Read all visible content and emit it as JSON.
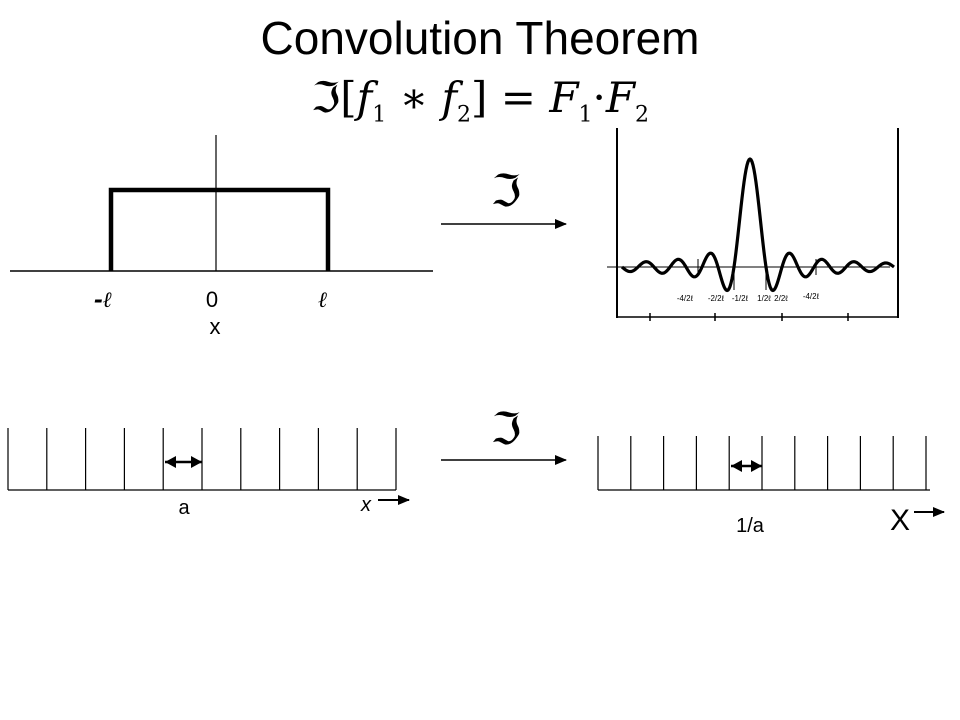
{
  "slide": {
    "title": "Convolution Theorem",
    "formula": {
      "ft": "ℑ",
      "open": "[",
      "f": "f",
      "one": "1",
      "star": "∗",
      "two": "2",
      "close": "]",
      "eq": "=",
      "F": "F",
      "dot": "·"
    }
  },
  "ft_symbol": "ℑ",
  "rect_plot": {
    "left_label": "-ℓ",
    "zero_label": "0",
    "right_label": "ℓ",
    "axis_label": "x"
  },
  "sinc_plot": {
    "tick_labels": [
      "-4/2ℓ",
      "-2/2ℓ",
      "-1/2ℓ",
      "1/2ℓ",
      "2/2ℓ",
      "-4/2ℓ"
    ]
  },
  "comb_left": {
    "spacing_label": "a",
    "axis_label": "x"
  },
  "comb_right": {
    "spacing_label": "1/a",
    "axis_label": "X"
  }
}
